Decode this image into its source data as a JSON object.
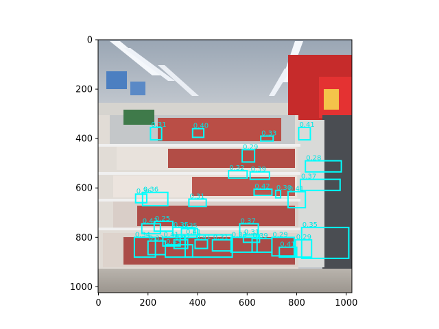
{
  "axes": {
    "x_ticks": [
      "0",
      "200",
      "400",
      "600",
      "800",
      "1000"
    ],
    "y_ticks": [
      "0",
      "200",
      "400",
      "600",
      "800",
      "1000"
    ],
    "x_range": [
      0,
      1024
    ],
    "y_range": [
      1024,
      0
    ],
    "grid": false
  },
  "box_color": "#00ffff",
  "detections": [
    {
      "score": "0.31",
      "x1": 210,
      "y1": 355,
      "x2": 255,
      "y2": 405
    },
    {
      "score": "0.40",
      "x1": 380,
      "y1": 360,
      "x2": 425,
      "y2": 395
    },
    {
      "score": "0.33",
      "x1": 655,
      "y1": 390,
      "x2": 705,
      "y2": 410
    },
    {
      "score": "0.41",
      "x1": 808,
      "y1": 355,
      "x2": 855,
      "y2": 405
    },
    {
      "score": "0.29",
      "x1": 580,
      "y1": 445,
      "x2": 630,
      "y2": 495
    },
    {
      "score": "0.28",
      "x1": 835,
      "y1": 490,
      "x2": 980,
      "y2": 535
    },
    {
      "score": "0.32",
      "x1": 525,
      "y1": 530,
      "x2": 600,
      "y2": 560
    },
    {
      "score": "0.39",
      "x1": 612,
      "y1": 535,
      "x2": 690,
      "y2": 565
    },
    {
      "score": "0.37",
      "x1": 815,
      "y1": 565,
      "x2": 975,
      "y2": 610
    },
    {
      "score": "0.36",
      "x1": 150,
      "y1": 625,
      "x2": 195,
      "y2": 660
    },
    {
      "score": "0.36",
      "x1": 178,
      "y1": 618,
      "x2": 280,
      "y2": 672
    },
    {
      "score": "0.42",
      "x1": 628,
      "y1": 605,
      "x2": 700,
      "y2": 630
    },
    {
      "score": "0.30",
      "x1": 715,
      "y1": 610,
      "x2": 735,
      "y2": 640
    },
    {
      "score": "0.41",
      "x1": 765,
      "y1": 615,
      "x2": 835,
      "y2": 680
    },
    {
      "score": "0.31",
      "x1": 365,
      "y1": 645,
      "x2": 435,
      "y2": 675
    },
    {
      "score": "0.47",
      "x1": 175,
      "y1": 745,
      "x2": 250,
      "y2": 785
    },
    {
      "score": "0.25",
      "x1": 225,
      "y1": 735,
      "x2": 300,
      "y2": 775
    },
    {
      "score": "0.35",
      "x1": 300,
      "y1": 760,
      "x2": 385,
      "y2": 790
    },
    {
      "score": "0.35",
      "x1": 335,
      "y1": 765,
      "x2": 400,
      "y2": 800
    },
    {
      "score": "0.37",
      "x1": 570,
      "y1": 745,
      "x2": 645,
      "y2": 800
    },
    {
      "score": "0.35",
      "x1": 820,
      "y1": 760,
      "x2": 1010,
      "y2": 885
    },
    {
      "score": "0.31",
      "x1": 585,
      "y1": 790,
      "x2": 650,
      "y2": 820
    },
    {
      "score": "0.34",
      "x1": 145,
      "y1": 800,
      "x2": 230,
      "y2": 880
    },
    {
      "score": "0.33",
      "x1": 200,
      "y1": 815,
      "x2": 270,
      "y2": 870
    },
    {
      "score": "0.41",
      "x1": 260,
      "y1": 800,
      "x2": 330,
      "y2": 835
    },
    {
      "score": "0.42",
      "x1": 305,
      "y1": 810,
      "x2": 360,
      "y2": 845
    },
    {
      "score": "0.41",
      "x1": 390,
      "y1": 810,
      "x2": 440,
      "y2": 845
    },
    {
      "score": "0.41",
      "x1": 350,
      "y1": 790,
      "x2": 540,
      "y2": 880
    },
    {
      "score": "0.31",
      "x1": 460,
      "y1": 810,
      "x2": 540,
      "y2": 855
    },
    {
      "score": "0.33",
      "x1": 535,
      "y1": 800,
      "x2": 640,
      "y2": 860
    },
    {
      "score": "0.39",
      "x1": 620,
      "y1": 805,
      "x2": 700,
      "y2": 860
    },
    {
      "score": "0.29",
      "x1": 700,
      "y1": 800,
      "x2": 790,
      "y2": 875
    },
    {
      "score": "0.41",
      "x1": 730,
      "y1": 840,
      "x2": 800,
      "y2": 880
    },
    {
      "score": "0.29",
      "x1": 795,
      "y1": 810,
      "x2": 860,
      "y2": 880
    },
    {
      "score": "0.43",
      "x1": 270,
      "y1": 830,
      "x2": 380,
      "y2": 880
    }
  ]
}
